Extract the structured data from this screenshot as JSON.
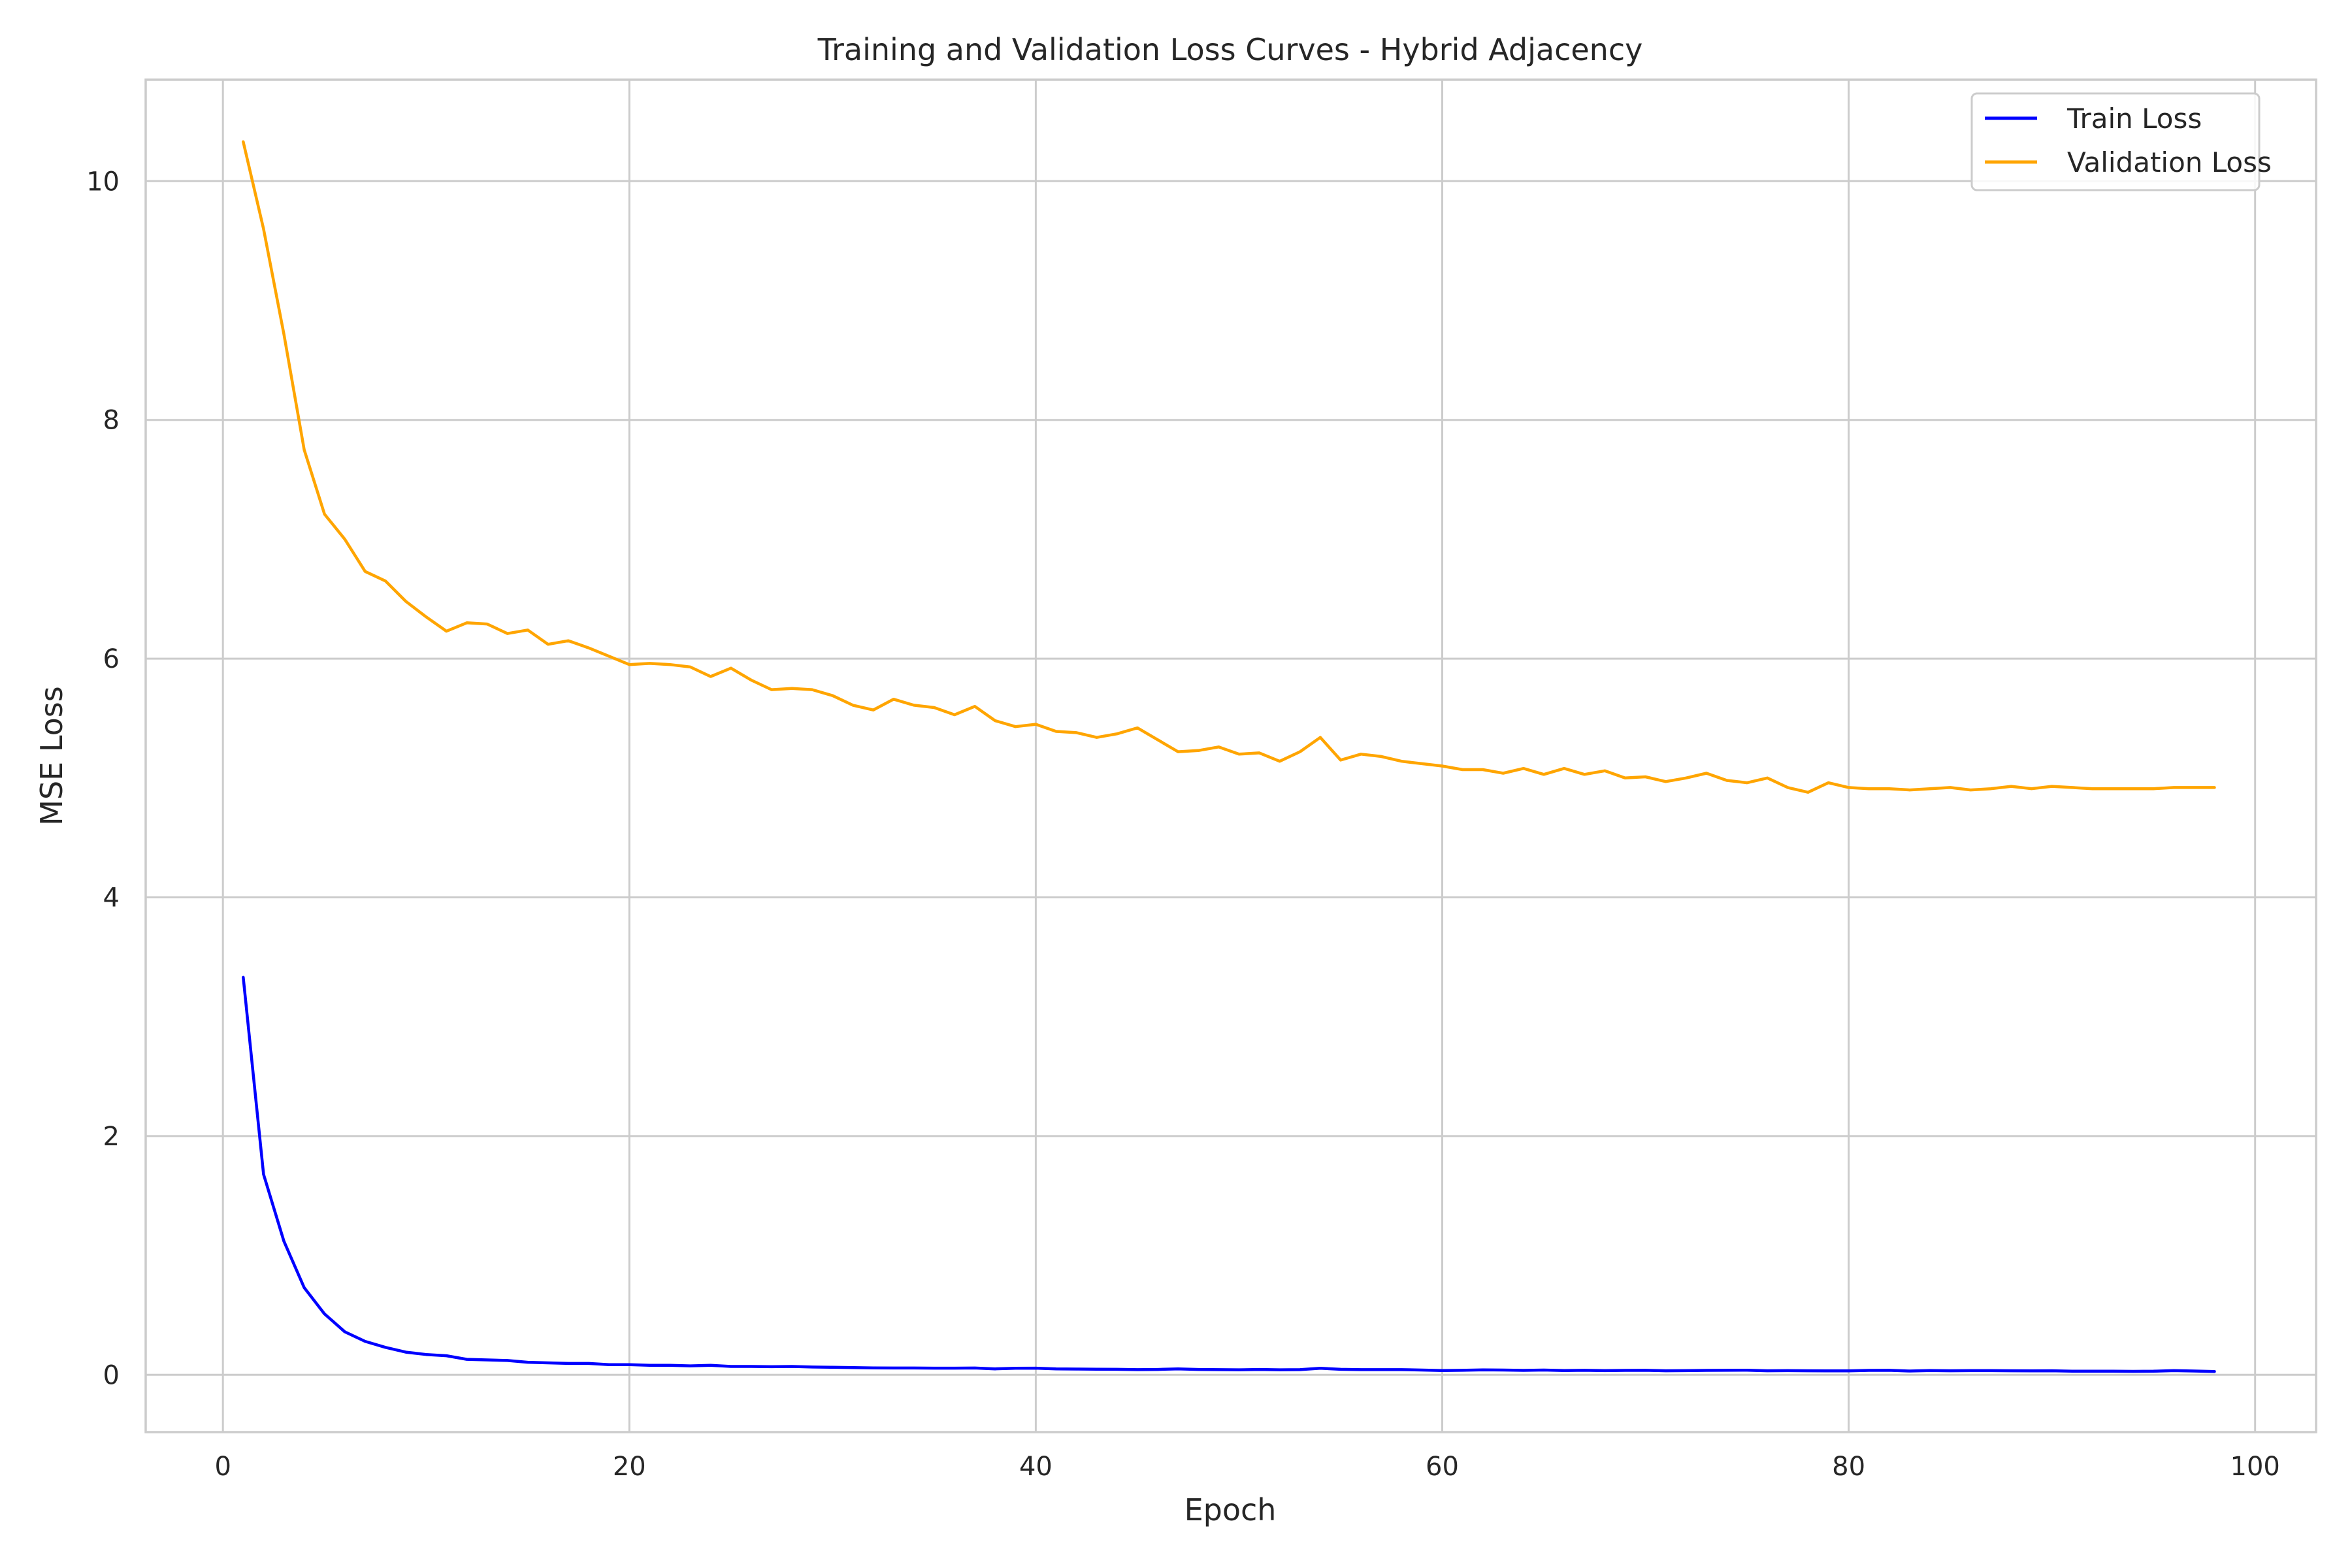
{
  "chart_data": {
    "type": "line",
    "title": "Training and Validation Loss Curves - Hybrid Adjacency",
    "xlabel": "Epoch",
    "ylabel": "MSE Loss",
    "xlim": [
      -3.8,
      103.0
    ],
    "ylim": [
      -0.48,
      10.85
    ],
    "xticks": [
      0,
      20,
      40,
      60,
      80,
      100
    ],
    "yticks": [
      0,
      2,
      4,
      6,
      8,
      10
    ],
    "xtick_labels": [
      "0",
      "20",
      "40",
      "60",
      "80",
      "100"
    ],
    "ytick_labels": [
      "0",
      "2",
      "4",
      "6",
      "8",
      "10"
    ],
    "grid": true,
    "legend_position": "top-right",
    "x": [
      1,
      2,
      3,
      4,
      5,
      6,
      7,
      8,
      9,
      10,
      11,
      12,
      13,
      14,
      15,
      16,
      17,
      18,
      19,
      20,
      21,
      22,
      23,
      24,
      25,
      26,
      27,
      28,
      29,
      30,
      31,
      32,
      33,
      34,
      35,
      36,
      37,
      38,
      39,
      40,
      41,
      42,
      43,
      44,
      45,
      46,
      47,
      48,
      49,
      50,
      51,
      52,
      53,
      54,
      55,
      56,
      57,
      58,
      59,
      60,
      61,
      62,
      63,
      64,
      65,
      66,
      67,
      68,
      69,
      70,
      71,
      72,
      73,
      74,
      75,
      76,
      77,
      78,
      79,
      80,
      81,
      82,
      83,
      84,
      85,
      86,
      87,
      88,
      89,
      90,
      91,
      92,
      93,
      94,
      95,
      96,
      97,
      98
    ],
    "series": [
      {
        "name": "Train Loss",
        "color": "#0000ff",
        "values": [
          3.33,
          1.68,
          1.12,
          0.73,
          0.51,
          0.36,
          0.28,
          0.23,
          0.19,
          0.17,
          0.16,
          0.13,
          0.125,
          0.12,
          0.105,
          0.1,
          0.095,
          0.095,
          0.085,
          0.085,
          0.08,
          0.08,
          0.075,
          0.08,
          0.07,
          0.07,
          0.068,
          0.07,
          0.065,
          0.063,
          0.06,
          0.058,
          0.057,
          0.057,
          0.056,
          0.056,
          0.057,
          0.05,
          0.055,
          0.056,
          0.05,
          0.048,
          0.047,
          0.046,
          0.043,
          0.045,
          0.05,
          0.045,
          0.043,
          0.042,
          0.045,
          0.042,
          0.043,
          0.055,
          0.046,
          0.043,
          0.043,
          0.043,
          0.04,
          0.036,
          0.038,
          0.041,
          0.04,
          0.037,
          0.04,
          0.036,
          0.038,
          0.035,
          0.037,
          0.038,
          0.034,
          0.035,
          0.037,
          0.038,
          0.039,
          0.034,
          0.035,
          0.034,
          0.033,
          0.033,
          0.037,
          0.038,
          0.032,
          0.036,
          0.034,
          0.035,
          0.035,
          0.034,
          0.033,
          0.034,
          0.03,
          0.03,
          0.03,
          0.029,
          0.03,
          0.035,
          0.032,
          0.028
        ]
      },
      {
        "name": "Validation Loss",
        "color": "#ffa500",
        "values": [
          10.33,
          9.6,
          8.72,
          7.75,
          7.21,
          7.0,
          6.73,
          6.65,
          6.48,
          6.35,
          6.23,
          6.3,
          6.29,
          6.21,
          6.24,
          6.12,
          6.15,
          6.09,
          6.02,
          5.95,
          5.96,
          5.95,
          5.93,
          5.85,
          5.92,
          5.82,
          5.74,
          5.75,
          5.74,
          5.69,
          5.61,
          5.57,
          5.66,
          5.61,
          5.59,
          5.53,
          5.6,
          5.48,
          5.43,
          5.45,
          5.39,
          5.38,
          5.34,
          5.37,
          5.42,
          5.32,
          5.22,
          5.23,
          5.26,
          5.2,
          5.21,
          5.14,
          5.22,
          5.34,
          5.15,
          5.2,
          5.18,
          5.14,
          5.12,
          5.1,
          5.07,
          5.07,
          5.04,
          5.08,
          5.03,
          5.08,
          5.03,
          5.06,
          5.0,
          5.01,
          4.97,
          5.0,
          5.04,
          4.98,
          4.96,
          5.0,
          4.92,
          4.88,
          4.96,
          4.92,
          4.91,
          4.91,
          4.9,
          4.91,
          4.92,
          4.9,
          4.91,
          4.93,
          4.91,
          4.93,
          4.92,
          4.91,
          4.91,
          4.91,
          4.91,
          4.92,
          4.92,
          4.92
        ]
      }
    ]
  }
}
